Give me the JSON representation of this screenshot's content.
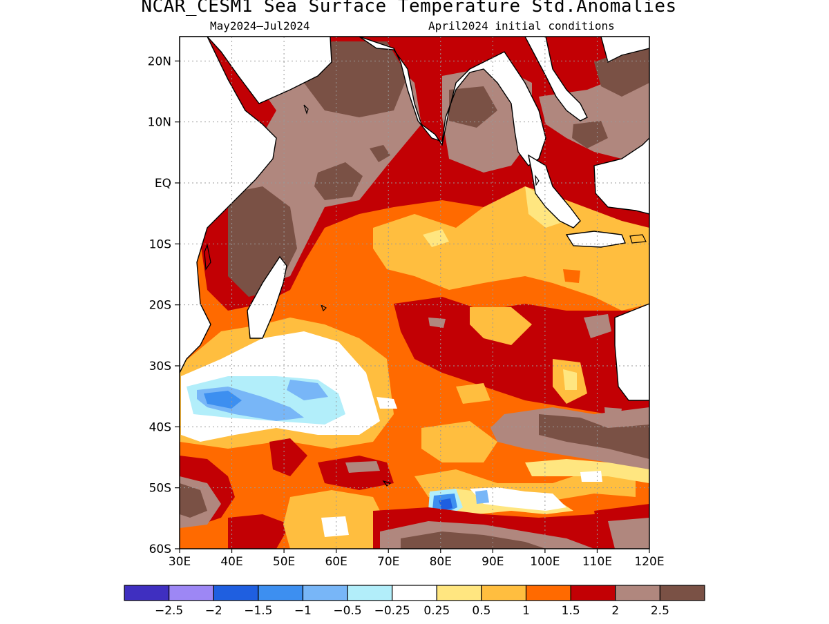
{
  "title": "NCAR_CESM1 Sea Surface Temperature Std.Anomalies",
  "subtitle_left": "May2024–Jul2024",
  "subtitle_right": "April2024 initial conditions",
  "map": {
    "lon_range": [
      30,
      120
    ],
    "lat_range": [
      -60,
      24
    ],
    "lon_ticks": [
      "30E",
      "40E",
      "50E",
      "60E",
      "70E",
      "80E",
      "90E",
      "100E",
      "110E",
      "120E"
    ],
    "lat_ticks": [
      "20N",
      "10N",
      "EQ",
      "10S",
      "20S",
      "30S",
      "40S",
      "50S",
      "60S"
    ],
    "grid": true
  },
  "colorbar": {
    "colors": [
      "#3f2fc0",
      "#9d87f5",
      "#1f5fe0",
      "#3d8ff0",
      "#78b6f7",
      "#b2eefa",
      "#ffffff",
      "#ffe680",
      "#ffbe3f",
      "#ff6a00",
      "#c20004",
      "#b0877e",
      "#7a5145"
    ],
    "labels": [
      "−2.5",
      "−2",
      "−1.5",
      "−1",
      "−0.5",
      "−0.25",
      "0.25",
      "0.5",
      "1",
      "1.5",
      "2",
      "2.5"
    ]
  }
}
